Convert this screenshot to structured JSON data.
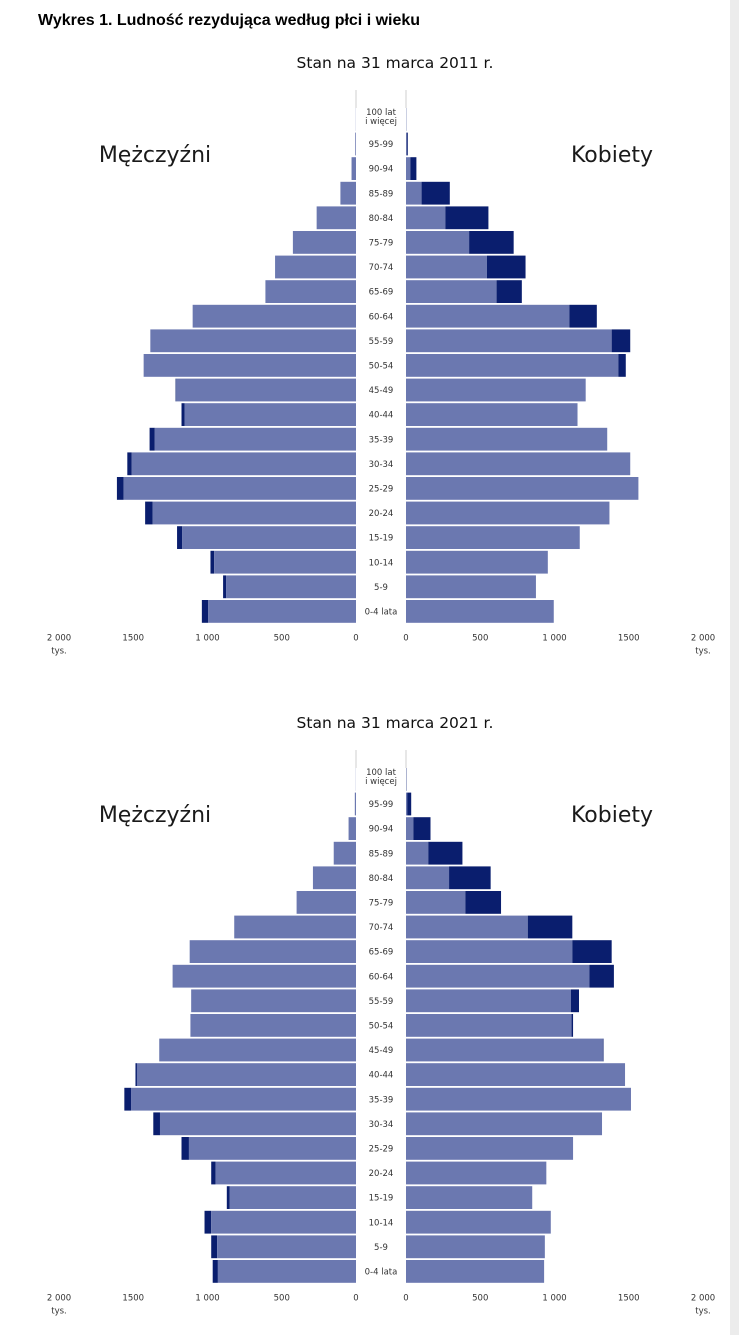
{
  "title": "Wykres 1. Ludność rezydująca według płci i wieku",
  "colors": {
    "total": "#6b78b0",
    "excess": "#0a1e6e"
  },
  "chart_data": [
    {
      "type": "bar",
      "subtitle": "Stan na 31 marca 2011 r.",
      "left_label": "Mężczyźni",
      "right_label": "Kobiety",
      "unit_label": "tys.",
      "age_groups": [
        "0-4 lata",
        "5-9",
        "10-14",
        "15-19",
        "20-24",
        "25-29",
        "30-34",
        "35-39",
        "40-44",
        "45-49",
        "50-54",
        "55-59",
        "60-64",
        "65-69",
        "70-74",
        "75-79",
        "80-84",
        "85-89",
        "90-94",
        "95-99",
        "100 lat i więcej"
      ],
      "xlim": [
        0,
        2000
      ],
      "xticks_left": [
        "2 000",
        "1500",
        "1 000",
        "500",
        "0"
      ],
      "xticks_right": [
        "0",
        "500",
        "1 000",
        "1500",
        "2 000"
      ],
      "series": [
        {
          "name": "Mężczyźni",
          "values": [
            1038,
            895,
            980,
            1205,
            1420,
            1610,
            1540,
            1390,
            1175,
            1215,
            1430,
            1385,
            1100,
            610,
            545,
            425,
            265,
            105,
            30,
            5,
            1
          ]
        },
        {
          "name": "Kobiety",
          "values": [
            995,
            875,
            955,
            1170,
            1370,
            1565,
            1510,
            1355,
            1155,
            1210,
            1480,
            1510,
            1285,
            780,
            805,
            725,
            555,
            295,
            70,
            12,
            2
          ]
        }
      ],
      "common": [
        995,
        875,
        955,
        1170,
        1370,
        1565,
        1510,
        1355,
        1155,
        1210,
        1430,
        1385,
        1100,
        610,
        545,
        425,
        265,
        105,
        30,
        5,
        1
      ]
    },
    {
      "type": "bar",
      "subtitle": "Stan na 31 marca 2021 r.",
      "left_label": "Mężczyźni",
      "right_label": "Kobiety",
      "unit_label": "tys.",
      "age_groups": [
        "0-4 lata",
        "5-9",
        "10-14",
        "15-19",
        "20-24",
        "25-29",
        "30-34",
        "35-39",
        "40-44",
        "45-49",
        "50-54",
        "55-59",
        "60-64",
        "65-69",
        "70-74",
        "75-79",
        "80-84",
        "85-89",
        "90-94",
        "95-99",
        "100 lat i więcej"
      ],
      "xlim": [
        0,
        2000
      ],
      "xticks_left": [
        "2 000",
        "1500",
        "1 000",
        "500",
        "0"
      ],
      "xticks_right": [
        "0",
        "500",
        "1 000",
        "1500",
        "2 000"
      ],
      "series": [
        {
          "name": "Mężczyźni",
          "values": [
            965,
            975,
            1020,
            870,
            975,
            1175,
            1365,
            1560,
            1485,
            1325,
            1115,
            1110,
            1235,
            1120,
            820,
            400,
            290,
            150,
            50,
            8,
            1
          ]
        },
        {
          "name": "Kobiety",
          "values": [
            930,
            935,
            975,
            850,
            945,
            1125,
            1320,
            1515,
            1475,
            1330,
            1125,
            1165,
            1400,
            1385,
            1120,
            640,
            570,
            380,
            165,
            35,
            3
          ]
        }
      ],
      "common": [
        930,
        935,
        975,
        850,
        945,
        1125,
        1320,
        1515,
        1475,
        1325,
        1115,
        1110,
        1235,
        1120,
        820,
        400,
        290,
        150,
        50,
        8,
        1
      ]
    }
  ]
}
